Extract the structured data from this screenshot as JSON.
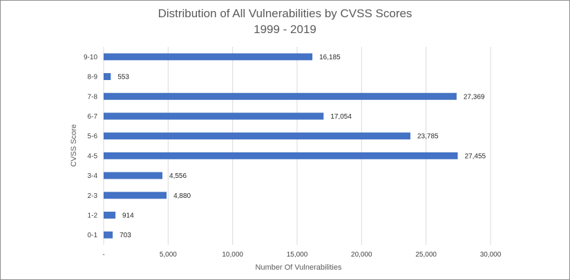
{
  "chart_data": {
    "type": "bar",
    "orientation": "horizontal",
    "title": "Distribution of All Vulnerabilities by CVSS Scores",
    "subtitle": "1999 - 2019",
    "xlabel": "Number Of Vulnerabilities",
    "ylabel": "CVSS Score",
    "categories": [
      "9-10",
      "8-9",
      "7-8",
      "6-7",
      "5-6",
      "4-5",
      "3-4",
      "2-3",
      "1-2",
      "0-1"
    ],
    "values": [
      16185,
      553,
      27369,
      17054,
      23785,
      27455,
      4556,
      4880,
      914,
      703
    ],
    "value_labels": [
      "16,185",
      "553",
      "27,369",
      "17,054",
      "23,785",
      "27,455",
      "4,556",
      "4,880",
      "914",
      "703"
    ],
    "xlim": [
      0,
      30000
    ],
    "xticks": [
      0,
      5000,
      10000,
      15000,
      20000,
      25000,
      30000
    ],
    "xtick_labels": [
      "-",
      "5,000",
      "10,000",
      "15,000",
      "20,000",
      "25,000",
      "30,000"
    ],
    "grid": "vertical",
    "bar_color": "#4472c4",
    "grid_color": "#d9d9d9"
  }
}
